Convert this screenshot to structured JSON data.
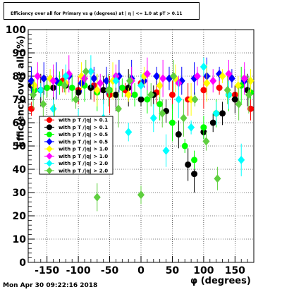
{
  "chart_data": {
    "type": "scatter",
    "title": "Efficiency over all for Primary vs φ (degrees) at | η | <= 1.0 at pT > 0.11",
    "xlabel": "φ (degrees)",
    "ylabel": "Efficiency over all (%)",
    "xlim": [
      -180,
      180
    ],
    "ylim": [
      0,
      100
    ],
    "x_ticks": [
      "-150",
      "-100",
      "-50",
      "0",
      "50",
      "100",
      "150"
    ],
    "y_ticks": [
      "0",
      "10",
      "20",
      "30",
      "40",
      "50",
      "60",
      "70",
      "80",
      "90",
      "100"
    ],
    "grid": true,
    "legend_position": "center-left",
    "legend_entries": [
      "with p T /|q| > 0.1",
      "with p T /|q| > 0.1",
      "with p T /|q| > 0.5",
      "with p T /|q| > 0.5",
      "with p T /|q| > 1.0",
      "with p T /|q| > 1.0",
      "with p T /|q| > 2.0",
      "with p T /|q| > 2.0"
    ],
    "series": [
      {
        "name": "with p T /|q| > 0.1",
        "color": "#ff0000",
        "marker": "circle",
        "x": [
          -175,
          -150,
          -125,
          -100,
          -75,
          -50,
          -25,
          0,
          25,
          50,
          75,
          100,
          125,
          150,
          175
        ],
        "y": [
          66,
          75,
          78,
          74,
          76,
          72,
          74,
          77,
          73,
          72,
          70,
          74,
          75,
          72,
          66
        ]
      },
      {
        "name": "with p T /|q| > 0.1",
        "color": "#000000",
        "marker": "circle",
        "x": [
          -175,
          -160,
          -140,
          -120,
          -100,
          -80,
          -60,
          -40,
          -20,
          0,
          20,
          40,
          60,
          75,
          85,
          100,
          115,
          130,
          150,
          170
        ],
        "y": [
          76,
          74,
          75,
          76,
          73,
          75,
          74,
          72,
          75,
          70,
          72,
          65,
          55,
          42,
          38,
          56,
          60,
          64,
          70,
          74
        ]
      },
      {
        "name": "with p T /|q| > 0.5",
        "color": "#00ff00",
        "marker": "circle",
        "x": [
          -170,
          -150,
          -130,
          -110,
          -90,
          -70,
          -50,
          -30,
          -10,
          10,
          30,
          50,
          70,
          85,
          100,
          120,
          140,
          160,
          175
        ],
        "y": [
          74,
          75,
          77,
          75,
          76,
          73,
          74,
          75,
          72,
          70,
          68,
          60,
          50,
          44,
          58,
          64,
          72,
          76,
          73
        ]
      },
      {
        "name": "with p T /|q| > 0.5",
        "color": "#0000ff",
        "marker": "diamond",
        "x": [
          -175,
          -155,
          -135,
          -115,
          -95,
          -75,
          -55,
          -35,
          -15,
          5,
          25,
          45,
          65,
          85,
          105,
          125,
          145,
          165
        ],
        "y": [
          78,
          79,
          78,
          80,
          77,
          79,
          78,
          80,
          79,
          78,
          80,
          79,
          78,
          79,
          80,
          81,
          79,
          78
        ]
      },
      {
        "name": "with p T /|q| > 1.0",
        "color": "#ffff00",
        "marker": "diamond",
        "x": [
          -170,
          -145,
          -120,
          -95,
          -70,
          -45,
          -20,
          5,
          30,
          55,
          80,
          105,
          130,
          155,
          175
        ],
        "y": [
          76,
          79,
          77,
          80,
          74,
          78,
          72,
          80,
          76,
          79,
          70,
          77,
          80,
          76,
          78
        ]
      },
      {
        "name": "with p T /|q| > 1.0",
        "color": "#ff00ff",
        "marker": "diamond",
        "x": [
          -165,
          -140,
          -115,
          -90,
          -65,
          -40,
          -15,
          10,
          35,
          60,
          90,
          115,
          140,
          165
        ],
        "y": [
          80,
          78,
          81,
          79,
          77,
          80,
          78,
          81,
          79,
          77,
          80,
          78,
          81,
          79
        ]
      },
      {
        "name": "with p T /|q| > 2.0",
        "color": "#00ffff",
        "marker": "diamond",
        "x": [
          -160,
          -140,
          -120,
          -100,
          -80,
          -60,
          -40,
          -20,
          0,
          20,
          40,
          60,
          80,
          100,
          120,
          140,
          160
        ],
        "y": [
          74,
          66,
          80,
          60,
          82,
          62,
          78,
          56,
          76,
          62,
          48,
          70,
          58,
          84,
          64,
          72,
          44
        ]
      },
      {
        "name": "with p T /|q| > 2.0",
        "color": "#5fcf3f",
        "marker": "diamond",
        "x": [
          -172,
          -156,
          -138,
          -122,
          -104,
          -88,
          -70,
          -52,
          -36,
          -18,
          0,
          16,
          34,
          52,
          68,
          86,
          104,
          122,
          138,
          156,
          172
        ],
        "y": [
          72,
          68,
          60,
          76,
          70,
          82,
          28,
          74,
          66,
          78,
          29,
          72,
          64,
          80,
          62,
          70,
          52,
          36,
          74,
          68,
          72
        ]
      }
    ]
  },
  "footer": {
    "date": "Mon Apr 30 09:22:16 2018"
  }
}
